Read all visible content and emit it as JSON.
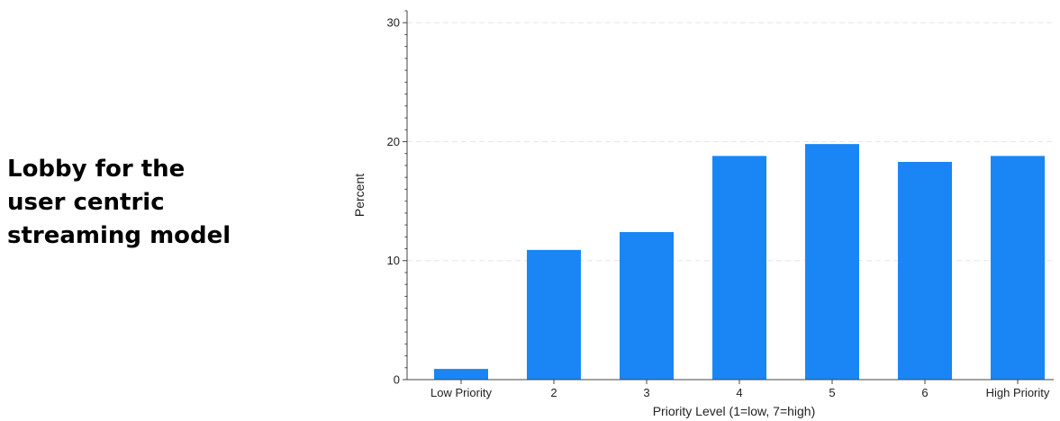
{
  "side_text": {
    "line1": "Lobby for the",
    "line2": "user centric",
    "line3": "streaming model"
  },
  "chart_data": {
    "type": "bar",
    "title": "",
    "xlabel": "Priority Level (1=low, 7=high)",
    "ylabel": "Percent",
    "categories": [
      "Low Priority",
      "2",
      "3",
      "4",
      "5",
      "6",
      "High Priority"
    ],
    "values": [
      0.9,
      10.9,
      12.4,
      18.8,
      19.8,
      18.3,
      18.8
    ],
    "ylim": [
      0,
      31
    ],
    "yticks": [
      0,
      10,
      20,
      30
    ],
    "grid": true,
    "legend": "none",
    "bar_color": "#1a86f5",
    "grid_color": "#e6e6e6",
    "axis_color": "#444444"
  }
}
